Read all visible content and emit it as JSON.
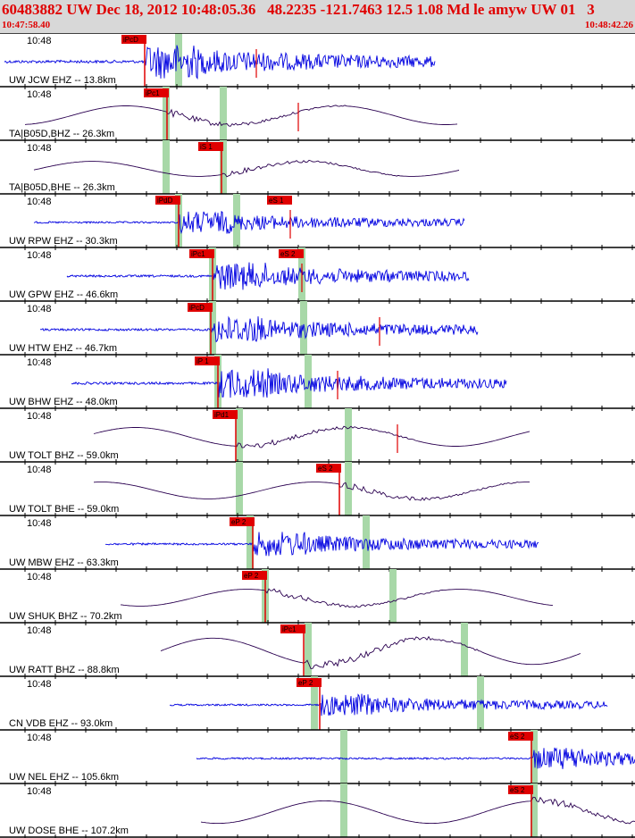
{
  "header": {
    "title": "60483882 UW Dec 18, 2012 10:48:05.36   48.2235 -121.7463 12.5 1.08 Md le amyw UW 01   3",
    "start_time": "10:47:58.40",
    "end_time": "10:48:42.26"
  },
  "colors": {
    "header_text": "#e00000",
    "header_bg": "#d8d8d8",
    "trace_short_period": "#0000e0",
    "trace_broadband": "#2a0050",
    "pick_flag": "#e00000",
    "arrival_band": "#a8d8a8",
    "divider": "#000000"
  },
  "traces": [
    {
      "label": "UW JCW EHZ -- 13.8km",
      "time_label": "10:48",
      "pick": "iPcD",
      "pick2": "",
      "color": "blue",
      "amp": 0.7,
      "mode": "bb"
    },
    {
      "label": "TA|B05D,BHZ -- 26.3km",
      "time_label": "10:48",
      "pick": "iPc1",
      "pick2": "",
      "color": "purple",
      "amp": 0.5,
      "mode": "lp"
    },
    {
      "label": "TA|B05D,BHE -- 26.3km",
      "time_label": "10:48",
      "pick": "iS 1",
      "pick2": "",
      "color": "purple",
      "amp": 0.4,
      "mode": "lp"
    },
    {
      "label": "UW RPW EHZ -- 30.3km",
      "time_label": "10:48",
      "pick": "iPdD",
      "pick2": "eS 1",
      "color": "blue",
      "amp": 0.45,
      "mode": "bb"
    },
    {
      "label": "UW GPW EHZ -- 46.6km",
      "time_label": "10:48",
      "pick": "iPc1",
      "pick2": "eS 2",
      "color": "blue",
      "amp": 0.55,
      "mode": "bb"
    },
    {
      "label": "UW HTW EHZ -- 46.7km",
      "time_label": "10:48",
      "pick": "iPcD",
      "pick2": "",
      "color": "blue",
      "amp": 0.55,
      "mode": "bb"
    },
    {
      "label": "UW BHW EHZ -- 48.0km",
      "time_label": "10:48",
      "pick": "iP 1",
      "pick2": "",
      "color": "blue",
      "amp": 0.6,
      "mode": "bb"
    },
    {
      "label": "UW TOLT BHZ -- 59.0km",
      "time_label": "10:48",
      "pick": "iPd1",
      "pick2": "",
      "color": "purple",
      "amp": 0.5,
      "mode": "lp"
    },
    {
      "label": "UW TOLT BHE -- 59.0km",
      "time_label": "10:48",
      "pick": "eS 2",
      "pick2": "",
      "color": "purple",
      "amp": 0.45,
      "mode": "lp"
    },
    {
      "label": "UW MBW EHZ -- 63.3km",
      "time_label": "10:48",
      "pick": "eP 2",
      "pick2": "",
      "color": "blue",
      "amp": 0.5,
      "mode": "bb"
    },
    {
      "label": "UW SHUK BHZ -- 70.2km",
      "time_label": "10:48",
      "pick": "eP 2",
      "pick2": "",
      "color": "purple",
      "amp": 0.45,
      "mode": "lp"
    },
    {
      "label": "UW RATT BHZ -- 88.8km",
      "time_label": "10:48",
      "pick": "iPc1",
      "pick2": "",
      "color": "purple",
      "amp": 0.7,
      "mode": "lp"
    },
    {
      "label": "CN VDB EHZ -- 93.0km",
      "time_label": "10:48",
      "pick": "eP 2",
      "pick2": "",
      "color": "blue",
      "amp": 0.45,
      "mode": "bb"
    },
    {
      "label": "UW NEL EHZ -- 105.6km",
      "time_label": "10:48",
      "pick": "eS 2",
      "pick2": "",
      "color": "blue",
      "amp": 0.45,
      "mode": "bb"
    },
    {
      "label": "UW DOSE BHE -- 107.2km",
      "time_label": "10:48",
      "pick": "eS 2",
      "pick2": "",
      "color": "purple",
      "amp": 0.6,
      "mode": "lp"
    }
  ]
}
